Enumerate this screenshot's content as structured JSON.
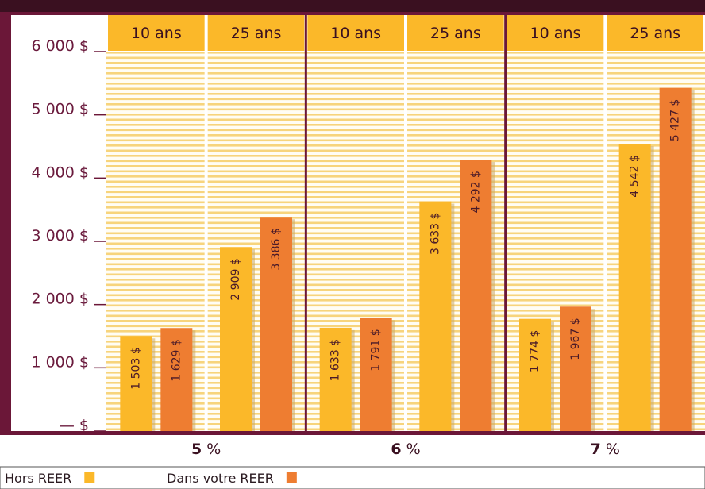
{
  "chart_data": {
    "type": "bar",
    "group_suffix": " %",
    "groups": [
      {
        "label": "5",
        "categories": [
          "10 ans",
          "25 ans"
        ]
      },
      {
        "label": "6",
        "categories": [
          "10 ans",
          "25 ans"
        ]
      },
      {
        "label": "7",
        "categories": [
          "10 ans",
          "25 ans"
        ]
      }
    ],
    "series": [
      {
        "name": "Hors REER",
        "color": "#fbb829",
        "values": [
          1503,
          2909,
          1633,
          3633,
          1774,
          4542
        ],
        "labels": [
          "1 503 $",
          "2 909 $",
          "1 633 $",
          "3 633 $",
          "1 774 $",
          "4 542 $"
        ]
      },
      {
        "name": "Dans votre REER",
        "color": "#ee7d31",
        "values": [
          1629,
          3386,
          1791,
          4292,
          1967,
          5427
        ],
        "labels": [
          "1 629 $",
          "3 386 $",
          "1 791 $",
          "4 292 $",
          "1 967 $",
          "5 427 $"
        ]
      }
    ],
    "yticks": [
      0,
      1000,
      2000,
      3000,
      4000,
      5000,
      6000
    ],
    "ytick_labels": [
      "— $",
      "1 000 $",
      "2 000 $",
      "3 000 $",
      "4 000 $",
      "5 000 $",
      "6 000 $"
    ],
    "ylim": [
      0,
      6000
    ],
    "grid": true,
    "legend_position": "bottom-left"
  },
  "colors": {
    "frame": "#6b1738",
    "header_bg": "#fbb829",
    "stripe": "#f7d47c",
    "plot_bg": "#fffdf4",
    "series_1": "#fbb829",
    "series_2": "#ee7d31"
  }
}
